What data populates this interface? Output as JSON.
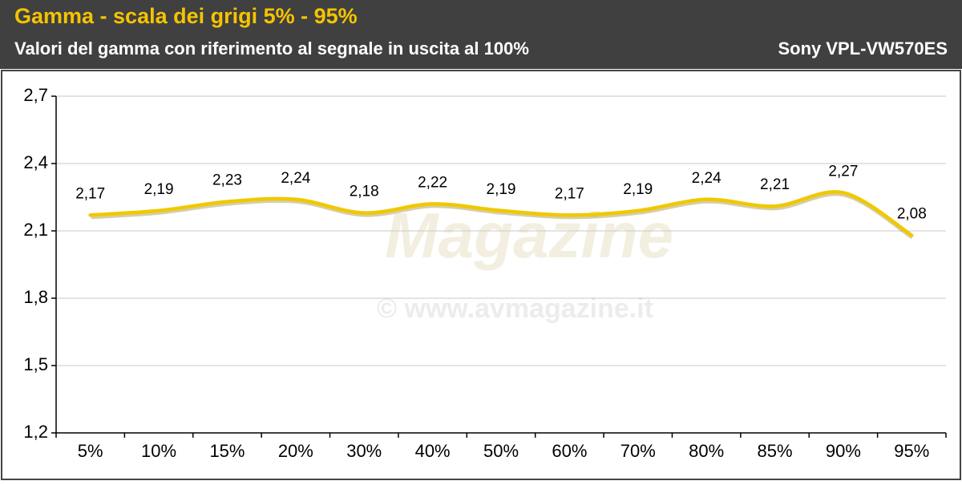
{
  "chart_data": {
    "type": "line",
    "title": "Gamma - scala dei grigi 5% - 95%",
    "subtitle": "Valori del gamma con riferimento al segnale in uscita al 100%",
    "device": "Sony VPL-VW570ES",
    "watermark": [
      "Magazine",
      "© www.avmagazine.it"
    ],
    "categories": [
      "5%",
      "10%",
      "15%",
      "20%",
      "30%",
      "40%",
      "50%",
      "60%",
      "70%",
      "80%",
      "85%",
      "90%",
      "95%"
    ],
    "values": [
      2.17,
      2.19,
      2.23,
      2.24,
      2.18,
      2.22,
      2.19,
      2.17,
      2.19,
      2.24,
      2.21,
      2.27,
      2.08
    ],
    "value_labels": [
      "2,17",
      "2,19",
      "2,23",
      "2,24",
      "2,18",
      "2,22",
      "2,19",
      "2,17",
      "2,19",
      "2,24",
      "2,21",
      "2,27",
      "2,08"
    ],
    "color": "#f0c800",
    "ylim": [
      1.2,
      2.7
    ],
    "yticks": [
      {
        "value": 1.2,
        "label": "1,2"
      },
      {
        "value": 1.5,
        "label": "1,5"
      },
      {
        "value": 1.8,
        "label": "1,8"
      },
      {
        "value": 2.1,
        "label": "2,1"
      },
      {
        "value": 2.4,
        "label": "2,4"
      },
      {
        "value": 2.7,
        "label": "2,7"
      }
    ],
    "grid": true
  }
}
